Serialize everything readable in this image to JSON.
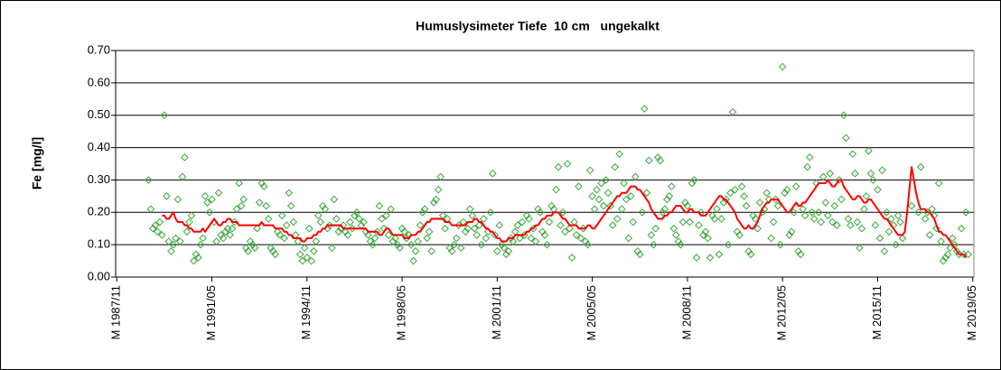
{
  "chart_data": {
    "type": "combo",
    "title": "Humuslysimeter Tiefe  10 cm   ungekalkt",
    "y_label": "Fe [mg/l]",
    "ylim": [
      0,
      0.7
    ],
    "yticks": [
      {
        "value": 0,
        "label": "0.00"
      },
      {
        "value": 0.1,
        "label": "0.10"
      },
      {
        "value": 0.2,
        "label": "0.20"
      },
      {
        "value": 0.3,
        "label": "0.30"
      },
      {
        "value": 0.4,
        "label": "0.40"
      },
      {
        "value": 0.5,
        "label": "0.50"
      },
      {
        "value": 0.6,
        "label": "0.60"
      },
      {
        "value": 0.7,
        "label": "0.70"
      }
    ],
    "grid": true,
    "categories": [
      "M 1987/11",
      null,
      null,
      null,
      null,
      null,
      null,
      null,
      null,
      null,
      null,
      null,
      null,
      null,
      null,
      null,
      null,
      null,
      null,
      null,
      null,
      null,
      null,
      null,
      null,
      null,
      null,
      null,
      null,
      null,
      null,
      null,
      null,
      null,
      null,
      null,
      null,
      null,
      null,
      null,
      null,
      null,
      "M 1991/05",
      null,
      null,
      null,
      null,
      null,
      null,
      null,
      null,
      null,
      null,
      null,
      null,
      null,
      null,
      null,
      null,
      null,
      null,
      null,
      null,
      null,
      null,
      null,
      null,
      null,
      null,
      null,
      null,
      null,
      null,
      null,
      null,
      null,
      null,
      null,
      null,
      null,
      null,
      null,
      null,
      null,
      "M 1994/11",
      null,
      null,
      null,
      null,
      null,
      null,
      null,
      null,
      null,
      null,
      null,
      null,
      null,
      null,
      null,
      null,
      null,
      null,
      null,
      null,
      null,
      null,
      null,
      null,
      null,
      null,
      null,
      null,
      null,
      null,
      null,
      null,
      null,
      null,
      null,
      null,
      null,
      null,
      null,
      null,
      null,
      "M 1998/05",
      null,
      null,
      null,
      null,
      null,
      null,
      null,
      null,
      null,
      null,
      null,
      null,
      null,
      null,
      null,
      null,
      null,
      null,
      null,
      null,
      null,
      null,
      null,
      null,
      null,
      null,
      null,
      null,
      null,
      null,
      null,
      null,
      null,
      null,
      null,
      null,
      null,
      null,
      null,
      null,
      null,
      "M 2001/11",
      null,
      null,
      null,
      null,
      null,
      null,
      null,
      null,
      null,
      null,
      null,
      null,
      null,
      null,
      null,
      null,
      null,
      null,
      null,
      null,
      null,
      null,
      null,
      null,
      null,
      null,
      null,
      null,
      null,
      null,
      null,
      null,
      null,
      null,
      null,
      null,
      null,
      null,
      null,
      null,
      null,
      "M 2005/05",
      null,
      null,
      null,
      null,
      null,
      null,
      null,
      null,
      null,
      null,
      null,
      null,
      null,
      null,
      null,
      null,
      null,
      null,
      null,
      null,
      null,
      null,
      null,
      null,
      null,
      null,
      null,
      null,
      null,
      null,
      null,
      null,
      null,
      null,
      null,
      null,
      null,
      null,
      null,
      null,
      null,
      "M 2008/11",
      null,
      null,
      null,
      null,
      null,
      null,
      null,
      null,
      null,
      null,
      null,
      null,
      null,
      null,
      null,
      null,
      null,
      null,
      null,
      null,
      null,
      null,
      null,
      null,
      null,
      null,
      null,
      null,
      null,
      null,
      null,
      null,
      null,
      null,
      null,
      null,
      null,
      null,
      null,
      null,
      null,
      "M 2012/05",
      null,
      null,
      null,
      null,
      null,
      null,
      null,
      null,
      null,
      null,
      null,
      null,
      null,
      null,
      null,
      null,
      null,
      null,
      null,
      null,
      null,
      null,
      null,
      null,
      null,
      null,
      null,
      null,
      null,
      null,
      null,
      null,
      null,
      null,
      null,
      null,
      null,
      null,
      null,
      null,
      null,
      "M 2015/11",
      null,
      null,
      null,
      null,
      null,
      null,
      null,
      null,
      null,
      null,
      null,
      null,
      null,
      null,
      null,
      null,
      null,
      null,
      null,
      null,
      null,
      null,
      null,
      null,
      null,
      null,
      null,
      null,
      null,
      null,
      null,
      null,
      null,
      null,
      null,
      null,
      null,
      null,
      null,
      null,
      null,
      "M 2019/05"
    ],
    "series": [
      {
        "type": "scatter",
        "marker": "diamond",
        "color": "#3aa83a",
        "values": [
          null,
          null,
          null,
          null,
          null,
          null,
          null,
          null,
          null,
          null,
          null,
          null,
          null,
          null,
          0.3,
          0.21,
          0.15,
          0.16,
          0.14,
          0.17,
          0.13,
          0.5,
          0.25,
          0.11,
          0.08,
          0.1,
          0.12,
          0.24,
          0.11,
          0.31,
          0.37,
          0.14,
          0.17,
          0.19,
          0.05,
          0.07,
          0.06,
          0.1,
          0.12,
          0.25,
          0.23,
          0.2,
          0.24,
          0.17,
          0.11,
          0.26,
          0.13,
          0.12,
          0.14,
          0.15,
          0.13,
          0.15,
          0.17,
          0.21,
          0.29,
          0.22,
          0.24,
          0.09,
          0.08,
          0.11,
          0.1,
          0.09,
          0.15,
          0.23,
          0.29,
          0.28,
          0.22,
          0.18,
          0.09,
          0.08,
          0.07,
          0.14,
          0.13,
          0.19,
          0.12,
          0.16,
          0.26,
          0.22,
          0.17,
          0.13,
          0.11,
          0.07,
          0.05,
          0.09,
          0.06,
          0.15,
          0.05,
          0.08,
          0.11,
          0.19,
          0.17,
          0.22,
          0.21,
          0.15,
          0.16,
          0.09,
          0.24,
          0.18,
          0.14,
          0.15,
          0.16,
          0.14,
          0.13,
          0.17,
          0.15,
          0.19,
          0.2,
          0.18,
          0.16,
          0.17,
          0.14,
          0.13,
          0.11,
          0.1,
          0.12,
          0.14,
          0.22,
          0.18,
          0.15,
          0.19,
          0.13,
          0.21,
          0.11,
          0.12,
          0.1,
          0.09,
          0.15,
          0.14,
          0.12,
          0.13,
          0.1,
          0.05,
          0.08,
          0.11,
          0.16,
          0.2,
          0.21,
          0.12,
          0.14,
          0.08,
          0.23,
          0.24,
          0.27,
          0.31,
          0.19,
          0.15,
          0.18,
          0.09,
          0.08,
          0.1,
          0.12,
          0.16,
          0.09,
          0.17,
          0.14,
          0.15,
          0.21,
          0.19,
          0.15,
          0.13,
          0.16,
          0.1,
          0.18,
          0.12,
          0.14,
          0.2,
          0.32,
          0.13,
          0.08,
          0.16,
          0.1,
          0.09,
          0.07,
          0.08,
          0.12,
          0.11,
          0.14,
          0.16,
          0.12,
          0.17,
          0.13,
          0.19,
          0.18,
          0.12,
          0.15,
          0.11,
          0.21,
          0.2,
          0.14,
          0.13,
          0.1,
          0.17,
          0.22,
          0.21,
          0.27,
          0.34,
          0.16,
          0.2,
          0.14,
          0.35,
          0.15,
          0.06,
          0.17,
          0.13,
          0.28,
          0.12,
          0.15,
          0.11,
          0.1,
          0.33,
          0.25,
          0.21,
          0.27,
          0.24,
          0.29,
          0.22,
          0.3,
          0.26,
          0.22,
          0.16,
          0.34,
          0.18,
          0.38,
          0.21,
          0.29,
          0.24,
          0.12,
          0.25,
          0.17,
          0.31,
          0.08,
          0.07,
          0.2,
          0.52,
          0.26,
          0.36,
          0.13,
          0.1,
          0.15,
          0.37,
          0.36,
          0.2,
          0.21,
          0.24,
          0.25,
          0.28,
          0.15,
          0.13,
          0.11,
          0.1,
          0.17,
          0.23,
          0.22,
          0.17,
          0.29,
          0.3,
          0.06,
          0.16,
          0.2,
          0.13,
          0.14,
          0.12,
          0.06,
          0.19,
          0.18,
          0.21,
          0.07,
          0.18,
          0.23,
          0.24,
          0.1,
          0.26,
          0.51,
          0.27,
          0.14,
          0.13,
          0.28,
          0.25,
          0.22,
          0.08,
          0.07,
          0.19,
          0.18,
          0.15,
          0.23,
          0.2,
          0.21,
          0.26,
          0.24,
          0.12,
          0.17,
          0.24,
          0.22,
          0.1,
          0.65,
          0.26,
          0.27,
          0.13,
          0.14,
          0.2,
          0.28,
          0.08,
          0.07,
          0.21,
          0.19,
          0.34,
          0.37,
          0.2,
          0.18,
          0.29,
          0.2,
          0.17,
          0.31,
          0.23,
          0.19,
          0.32,
          0.17,
          0.22,
          0.16,
          0.3,
          0.24,
          0.5,
          0.43,
          0.18,
          0.16,
          0.38,
          0.32,
          0.17,
          0.09,
          0.15,
          0.21,
          0.25,
          0.39,
          0.32,
          0.3,
          0.16,
          0.27,
          0.12,
          0.33,
          0.08,
          0.2,
          0.14,
          0.18,
          0.16,
          0.1,
          0.19,
          0.17,
          0.12,
          null,
          null,
          null,
          0.22,
          null,
          null,
          0.2,
          0.34,
          null,
          0.18,
          0.2,
          0.13,
          0.21,
          0.19,
          0.15,
          0.29,
          0.11,
          0.05,
          0.06,
          0.07,
          0.09,
          0.12,
          0.1,
          0.08,
          0.07,
          0.15,
          0.07,
          0.2,
          0.07,
          null,
          null
        ]
      },
      {
        "type": "line",
        "color": "#ff0000",
        "values": [
          null,
          null,
          null,
          null,
          null,
          null,
          null,
          null,
          null,
          null,
          null,
          null,
          null,
          null,
          null,
          null,
          null,
          null,
          null,
          null,
          0.19,
          0.19,
          0.18,
          0.18,
          0.19,
          0.2,
          0.18,
          0.17,
          0.17,
          0.17,
          0.16,
          0.16,
          0.15,
          0.15,
          0.14,
          0.14,
          0.14,
          0.14,
          0.15,
          0.14,
          0.15,
          0.16,
          0.17,
          0.18,
          0.17,
          0.16,
          0.16,
          0.17,
          0.17,
          0.18,
          0.18,
          0.17,
          0.17,
          0.17,
          0.16,
          0.16,
          0.16,
          0.16,
          0.16,
          0.16,
          0.16,
          0.16,
          0.16,
          0.16,
          0.17,
          0.16,
          0.16,
          0.16,
          0.16,
          0.16,
          0.15,
          0.15,
          0.15,
          0.15,
          0.14,
          0.14,
          0.13,
          0.13,
          0.12,
          0.12,
          0.12,
          0.12,
          0.11,
          0.11,
          0.12,
          0.12,
          0.12,
          0.13,
          0.13,
          0.14,
          0.14,
          0.15,
          0.15,
          0.16,
          0.16,
          0.16,
          0.16,
          0.16,
          0.16,
          0.16,
          0.15,
          0.15,
          0.15,
          0.15,
          0.15,
          0.15,
          0.15,
          0.15,
          0.15,
          0.15,
          0.15,
          0.14,
          0.14,
          0.14,
          0.14,
          0.14,
          0.13,
          0.13,
          0.14,
          0.15,
          0.15,
          0.14,
          0.13,
          0.13,
          0.13,
          0.13,
          0.13,
          0.12,
          0.12,
          0.12,
          0.13,
          0.13,
          0.13,
          0.14,
          0.14,
          0.15,
          0.16,
          0.17,
          0.17,
          0.18,
          0.18,
          0.18,
          0.18,
          0.18,
          0.18,
          0.17,
          0.17,
          0.17,
          0.16,
          0.16,
          0.16,
          0.16,
          0.16,
          0.16,
          0.16,
          0.17,
          0.17,
          0.17,
          0.18,
          0.18,
          0.17,
          0.17,
          0.16,
          0.15,
          0.15,
          0.14,
          0.14,
          0.13,
          0.12,
          0.12,
          0.11,
          0.11,
          0.11,
          0.12,
          0.12,
          0.12,
          0.13,
          0.13,
          0.13,
          0.13,
          0.13,
          0.14,
          0.14,
          0.15,
          0.15,
          0.16,
          0.16,
          0.17,
          0.18,
          0.18,
          0.19,
          0.19,
          0.19,
          0.2,
          0.2,
          0.2,
          0.19,
          0.18,
          0.18,
          0.17,
          0.16,
          0.16,
          0.16,
          0.16,
          0.15,
          0.15,
          0.15,
          0.15,
          0.16,
          0.16,
          0.15,
          0.15,
          0.16,
          0.17,
          0.18,
          0.19,
          0.2,
          0.21,
          0.22,
          0.23,
          0.24,
          0.25,
          0.25,
          0.26,
          0.26,
          0.26,
          0.27,
          0.28,
          0.28,
          0.28,
          0.27,
          0.27,
          0.26,
          0.25,
          0.24,
          0.23,
          0.21,
          0.2,
          0.19,
          0.18,
          0.18,
          0.18,
          0.19,
          0.19,
          0.2,
          0.2,
          0.21,
          0.22,
          0.22,
          0.22,
          0.21,
          0.2,
          0.2,
          0.21,
          0.21,
          0.2,
          0.2,
          0.2,
          0.19,
          0.19,
          0.19,
          0.2,
          0.21,
          0.22,
          0.23,
          0.24,
          0.25,
          0.25,
          0.24,
          0.24,
          0.23,
          0.22,
          0.21,
          0.2,
          0.18,
          0.17,
          0.16,
          0.15,
          0.15,
          0.16,
          0.15,
          0.15,
          0.16,
          0.17,
          0.19,
          0.21,
          0.22,
          0.23,
          0.23,
          0.24,
          0.24,
          0.24,
          0.24,
          0.23,
          0.22,
          0.21,
          0.2,
          0.2,
          0.21,
          0.22,
          0.23,
          0.22,
          0.22,
          0.23,
          0.23,
          0.24,
          0.25,
          0.26,
          0.27,
          0.28,
          0.29,
          0.29,
          0.29,
          0.29,
          0.3,
          0.29,
          0.28,
          0.28,
          0.29,
          0.3,
          0.3,
          0.28,
          0.27,
          0.26,
          0.25,
          0.24,
          0.24,
          0.25,
          0.25,
          0.24,
          0.23,
          0.23,
          0.24,
          0.24,
          0.23,
          0.22,
          0.21,
          0.2,
          0.19,
          0.18,
          0.18,
          0.17,
          0.16,
          0.15,
          0.14,
          0.13,
          0.13,
          0.13,
          0.14,
          0.2,
          0.27,
          0.34,
          0.3,
          0.26,
          0.23,
          0.21,
          0.21,
          0.21,
          0.2,
          0.2,
          0.19,
          0.18,
          0.16,
          0.14,
          0.14,
          0.13,
          0.13,
          0.12,
          0.11,
          0.1,
          0.09,
          0.08,
          0.07,
          0.07,
          0.07,
          0.06,
          null,
          null,
          null
        ]
      }
    ]
  }
}
